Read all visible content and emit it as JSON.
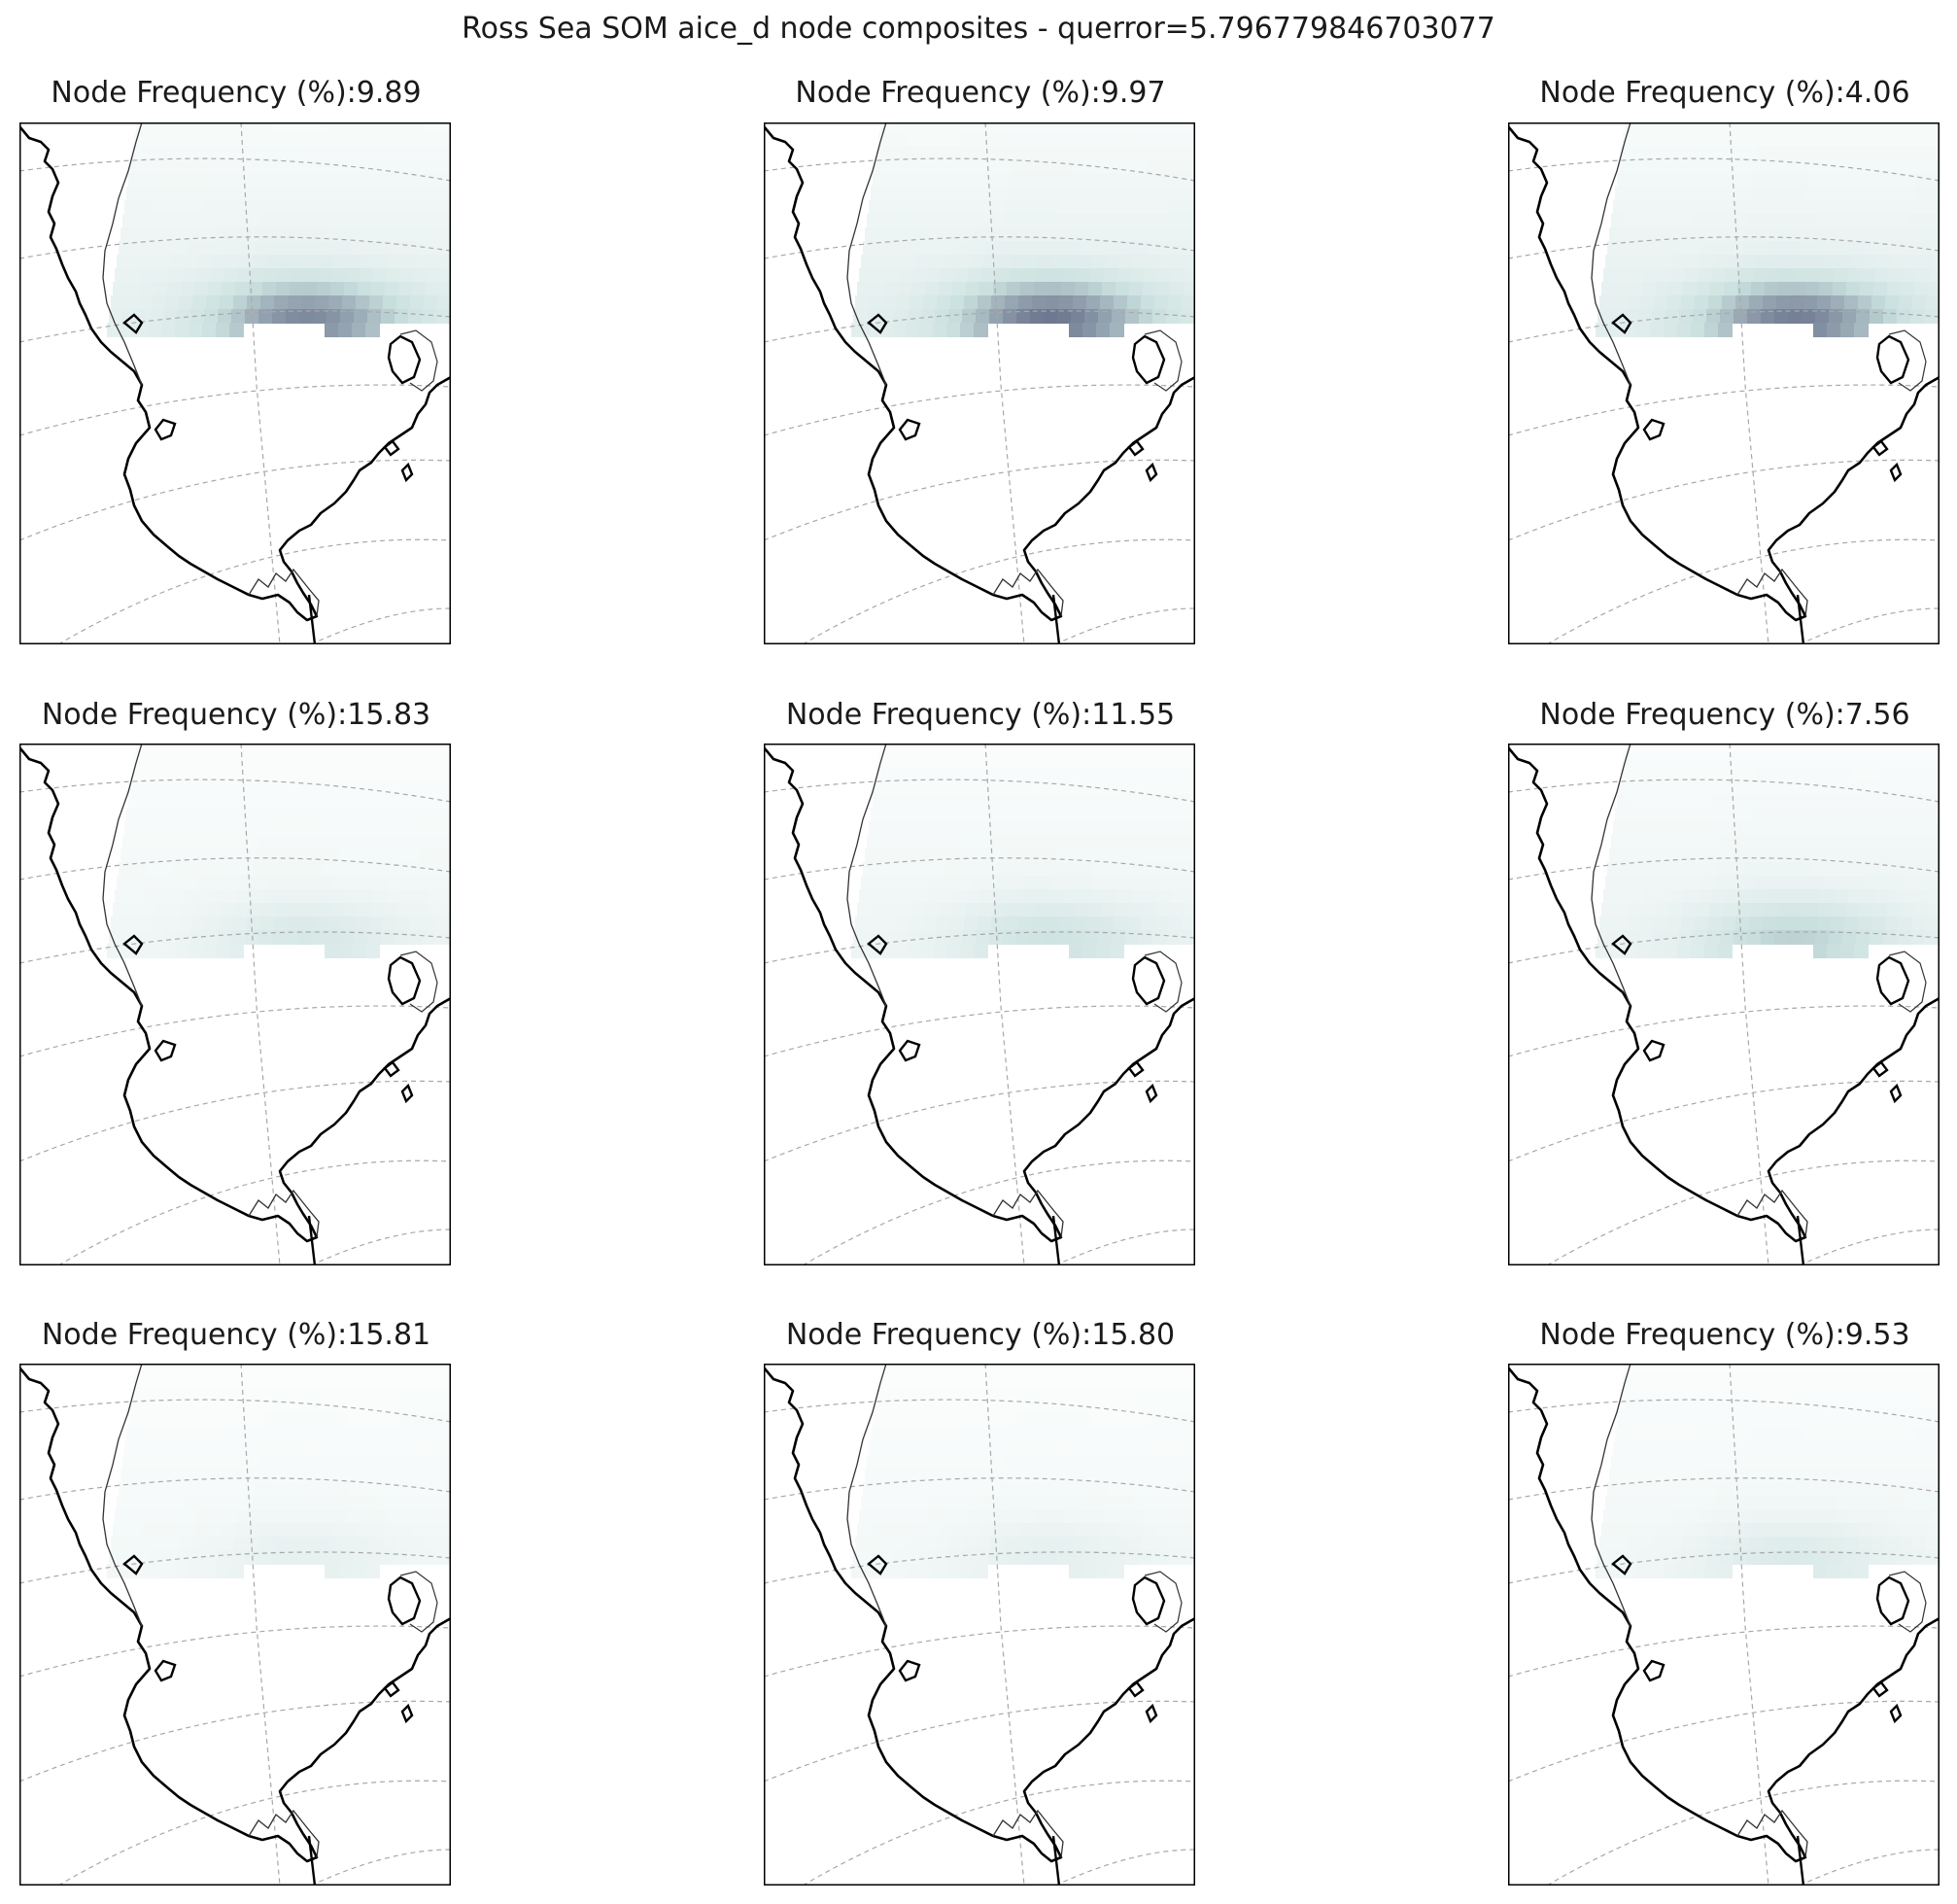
{
  "figure": {
    "title": "Ross Sea SOM aice_d node composites - querror=5.796779846703077",
    "colors": {
      "background": "#ffffff",
      "coastline": "#000000",
      "ice_shelf_line": "#333333",
      "gridline": "#a8a8a8",
      "frame": "#000000",
      "colormap_low": "#ffffff",
      "colormap_mid": "#c9e0de",
      "colormap_high": "#6e7890"
    }
  },
  "panels": [
    {
      "node": 1,
      "label": "Node Frequency (%):9.89",
      "frequency_percent": 9.89,
      "max_anomaly_level": 0.95
    },
    {
      "node": 2,
      "label": "Node Frequency (%):9.97",
      "frequency_percent": 9.97,
      "max_anomaly_level": 1.0
    },
    {
      "node": 3,
      "label": "Node Frequency (%):4.06",
      "frequency_percent": 4.06,
      "max_anomaly_level": 0.98
    },
    {
      "node": 4,
      "label": "Node Frequency (%):15.83",
      "frequency_percent": 15.83,
      "max_anomaly_level": 0.55
    },
    {
      "node": 5,
      "label": "Node Frequency (%):11.55",
      "frequency_percent": 11.55,
      "max_anomaly_level": 0.62
    },
    {
      "node": 6,
      "label": "Node Frequency (%):7.56",
      "frequency_percent": 7.56,
      "max_anomaly_level": 0.72
    },
    {
      "node": 7,
      "label": "Node Frequency (%):15.81",
      "frequency_percent": 15.81,
      "max_anomaly_level": 0.35
    },
    {
      "node": 8,
      "label": "Node Frequency (%):15.80",
      "frequency_percent": 15.8,
      "max_anomaly_level": 0.4
    },
    {
      "node": 9,
      "label": "Node Frequency (%):9.53",
      "frequency_percent": 9.53,
      "max_anomaly_level": 0.52
    }
  ]
}
